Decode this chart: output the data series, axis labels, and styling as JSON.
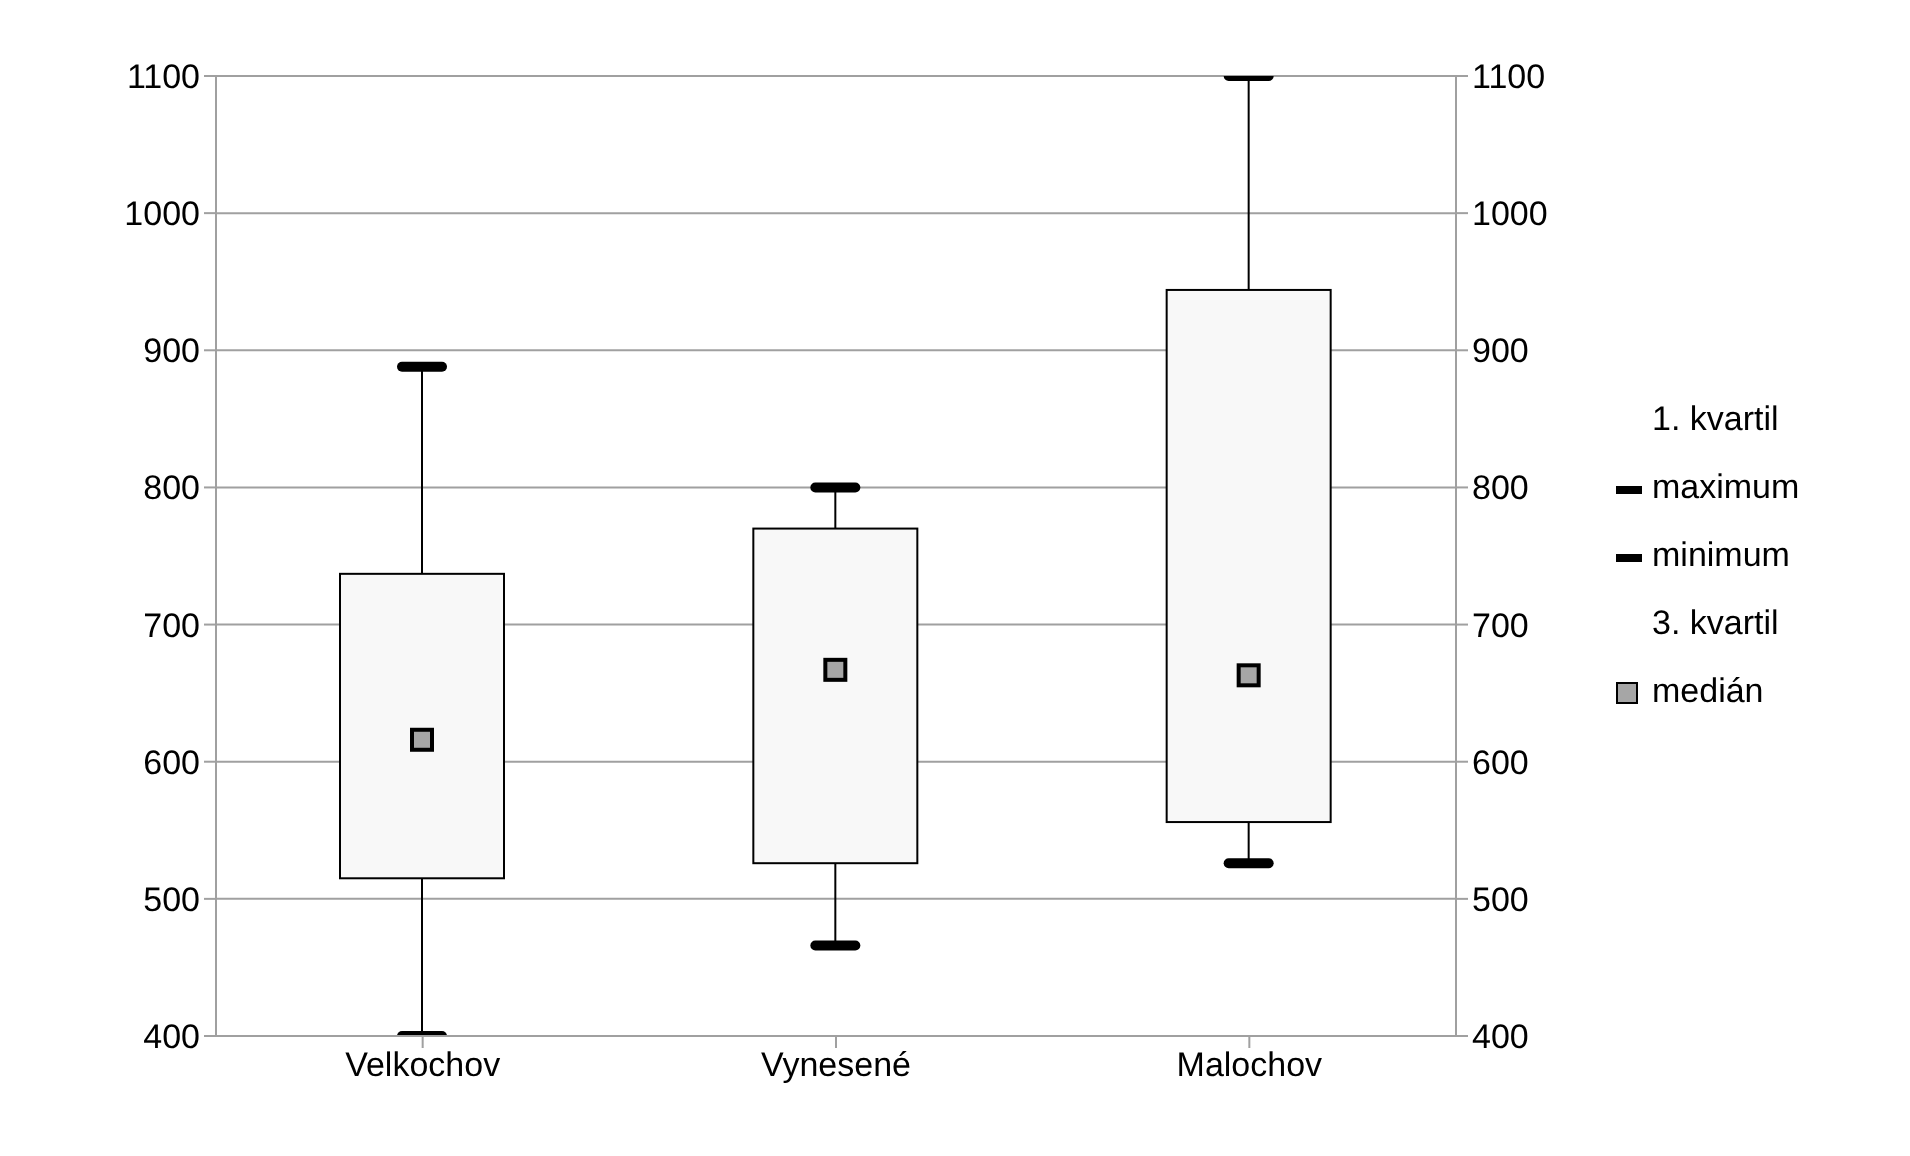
{
  "chart_data": {
    "type": "box",
    "categories": [
      "Velkochov",
      "Vynesené",
      "Malochov"
    ],
    "boxes": [
      {
        "low": 400,
        "q1": 515,
        "median": 616,
        "q3": 737,
        "high": 888
      },
      {
        "low": 466,
        "q1": 526,
        "median": 667,
        "q3": 770,
        "high": 800
      },
      {
        "low": 526,
        "q1": 556,
        "median": 663,
        "q3": 944,
        "high": 1100
      }
    ],
    "color": "#f8f8f8",
    "marker": "square",
    "annotations": [
      "1. kvartil",
      "maximum",
      "minimum",
      "3. kvartil",
      "medián"
    ],
    "ylim": [
      400,
      1100
    ],
    "yticks": [
      400,
      500,
      600,
      700,
      800,
      900,
      1000,
      1100
    ],
    "y2lim": [
      400,
      1100
    ],
    "y2ticks": [
      400,
      500,
      600,
      700,
      800,
      900,
      1000,
      1100
    ],
    "grid": "y"
  }
}
